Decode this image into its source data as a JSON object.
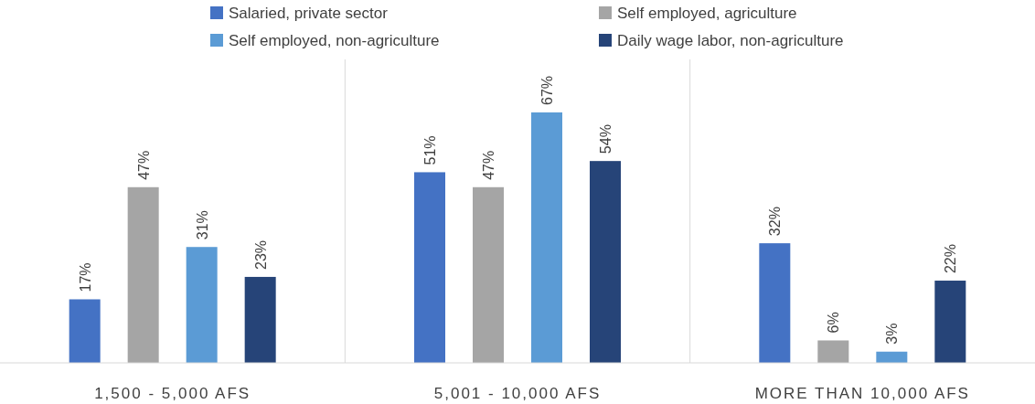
{
  "chart_data": {
    "type": "bar",
    "categories": [
      "1,500 - 5,000 AFS",
      "5,001 - 10,000 AFS",
      "MORE THAN 10,000 AFS"
    ],
    "series": [
      {
        "name": "Salaried, private sector",
        "color": "#4472c4",
        "values": [
          17,
          51,
          32
        ],
        "value_labels": [
          "17%",
          "51%",
          "32%"
        ]
      },
      {
        "name": "Self employed, agriculture",
        "color": "#a5a5a5",
        "values": [
          47,
          47,
          6
        ],
        "value_labels": [
          "47%",
          "47%",
          "6%"
        ]
      },
      {
        "name": "Self employed, non-agriculture",
        "color": "#5b9bd5",
        "values": [
          31,
          67,
          3
        ],
        "value_labels": [
          "31%",
          "67%",
          "3%"
        ]
      },
      {
        "name": "Daily wage labor, non-agriculture",
        "color": "#264478",
        "values": [
          23,
          54,
          22
        ],
        "value_labels": [
          "23%",
          "54%",
          "22%"
        ]
      }
    ],
    "legend": "top",
    "grid": "x"
  }
}
